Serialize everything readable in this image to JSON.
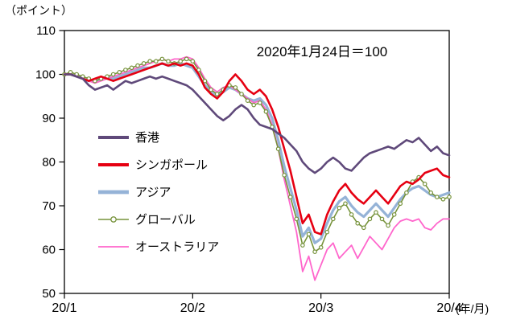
{
  "chart_data": {
    "type": "line",
    "title": "",
    "unit_label": "（ポイント）",
    "annotation": "2020年1月24日＝100",
    "x_unit_label": "(年/月)",
    "xlabel": "",
    "ylabel": "ポイント",
    "ylim": [
      50,
      110
    ],
    "y_ticks": [
      110,
      100,
      90,
      80,
      70,
      60,
      50
    ],
    "x_tick_labels": [
      "20/1",
      "20/2",
      "20/3",
      "20/4"
    ],
    "x_tick_positions": [
      0,
      21,
      42,
      63
    ],
    "n_points": 64,
    "grid": false,
    "legend_position": "middle-left",
    "series": [
      {
        "id": "hong-kong",
        "name": "香港",
        "color": "#5f497a",
        "width": 2.6,
        "markers": false,
        "z": 5,
        "values": [
          100,
          100,
          99.5,
          99,
          97.5,
          96.5,
          97,
          97.5,
          96.5,
          97.5,
          98.5,
          98,
          98.5,
          99,
          99.5,
          99,
          99.5,
          99,
          98.5,
          98,
          97.5,
          96.5,
          95,
          93.5,
          92,
          90.5,
          89.5,
          90.5,
          92,
          93,
          92,
          90,
          88.5,
          88,
          87.5,
          86.5,
          85.5,
          84,
          82.5,
          80,
          78.5,
          77.5,
          78.5,
          80,
          81,
          80,
          78.5,
          78,
          79.5,
          81,
          82,
          82.5,
          83,
          83.5,
          83,
          84,
          85,
          84.5,
          85.5,
          84,
          82.5,
          83.5,
          82,
          81.5
        ]
      },
      {
        "id": "singapore",
        "name": "シンガポール",
        "color": "#e60012",
        "width": 2.6,
        "markers": false,
        "z": 4,
        "values": [
          100,
          100,
          99.5,
          99,
          98.5,
          99,
          99.5,
          99,
          98.5,
          99,
          99.5,
          100,
          100.5,
          101,
          101.5,
          102,
          102.5,
          102,
          102.5,
          102,
          102.5,
          102,
          100,
          97,
          95.5,
          94.5,
          96,
          98.5,
          100,
          98.5,
          96.5,
          95.5,
          96.5,
          95,
          92,
          88,
          83,
          78,
          72,
          66,
          68,
          64,
          63.5,
          68,
          71,
          73.5,
          75,
          73,
          71.5,
          70.5,
          72,
          73.5,
          72,
          70.5,
          72.5,
          74.5,
          75.5,
          75,
          76,
          77.5,
          78,
          78.5,
          77,
          76.5
        ]
      },
      {
        "id": "asia",
        "name": "アジア",
        "color": "#95b3d7",
        "width": 3.2,
        "markers": false,
        "z": 1,
        "values": [
          100,
          100,
          99.5,
          99,
          98.5,
          98.5,
          99,
          99.5,
          99,
          99.5,
          100,
          100.5,
          101,
          101.5,
          101.5,
          102,
          102.5,
          102,
          102,
          102.5,
          102,
          101.5,
          99.5,
          97.5,
          96,
          95,
          96,
          97,
          96.5,
          95.5,
          94.5,
          94,
          94.5,
          93,
          90,
          85,
          79,
          74,
          69,
          63,
          65,
          61.5,
          62.5,
          66,
          69,
          71,
          72,
          70,
          68.5,
          67.5,
          69,
          70.5,
          69,
          67.5,
          69.5,
          71.5,
          73,
          74,
          74.5,
          73.5,
          72.5,
          72,
          72.5,
          73
        ]
      },
      {
        "id": "global",
        "name": "グローバル",
        "color": "#77933c",
        "width": 1.6,
        "markers": true,
        "z": 3,
        "values": [
          100,
          100.5,
          100,
          99.5,
          99,
          98.5,
          99,
          99.5,
          100,
          100.5,
          101,
          101.5,
          102,
          102.5,
          103,
          103,
          103.5,
          103,
          102.5,
          103,
          103.5,
          103,
          101,
          98.5,
          96.5,
          95.5,
          96.5,
          97.5,
          97,
          95.5,
          94,
          93,
          93.5,
          91.5,
          88,
          83,
          77,
          72,
          67,
          61,
          63.5,
          59.5,
          60.5,
          64,
          67,
          69.5,
          70.5,
          68,
          66,
          65,
          67,
          68.5,
          67,
          65.5,
          68,
          70.5,
          73,
          75.5,
          76.5,
          75,
          73,
          72,
          71.5,
          72
        ]
      },
      {
        "id": "australia",
        "name": "オーストラリア",
        "color": "#ff66cc",
        "width": 1.8,
        "markers": false,
        "z": 2,
        "values": [
          100,
          100,
          99.5,
          99,
          98.5,
          98,
          98.5,
          99,
          99.5,
          100,
          100.5,
          101,
          101.5,
          102,
          102.5,
          103,
          103.5,
          103,
          103.5,
          103.5,
          104,
          103.5,
          101.5,
          99,
          97,
          96,
          97,
          97.5,
          96.5,
          95.5,
          94.5,
          93.5,
          94,
          92,
          88.5,
          83,
          76,
          70,
          64,
          55,
          58.5,
          53,
          56.5,
          60,
          61.5,
          58,
          59.5,
          61,
          58,
          60.5,
          63,
          61.5,
          60,
          62.5,
          65,
          66.5,
          67,
          66.5,
          67,
          65,
          64.5,
          66,
          67,
          67
        ]
      }
    ]
  }
}
